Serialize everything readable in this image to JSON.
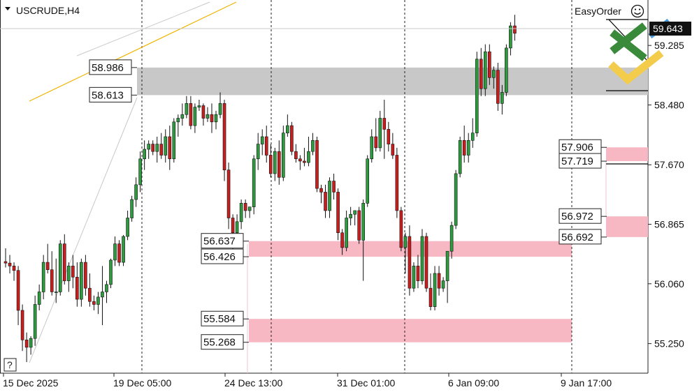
{
  "chart_header": {
    "symbol": "USCRUDE,H4",
    "panel_name": "EasyOrder",
    "help_label": "?"
  },
  "chart_data": {
    "type": "candlestick",
    "symbol": "USCRUDE",
    "timeframe": "H4",
    "current_price": "59.643",
    "y_range": [
      54.85,
      59.9
    ],
    "y_ticks": [
      "59.285",
      "58.480",
      "57.670",
      "56.865",
      "56.060",
      "55.250"
    ],
    "x_ticks": [
      "15 Dec 2025",
      "19 Dec 05:00",
      "24 Dec 13:00",
      "31 Dec 01:00",
      "6 Jan 09:00",
      "9 Jan 17:00"
    ],
    "grid": "vertical dashed separators",
    "zones": [
      {
        "color": "#c8c8c8",
        "high": "58.986",
        "low": "58.613"
      },
      {
        "color": "#f7b8c4",
        "high": "56.637",
        "low": "56.426"
      },
      {
        "color": "#f7b8c4",
        "high": "55.584",
        "low": "55.268"
      },
      {
        "color": "#f7b8c4",
        "high": "57.906",
        "low": "57.719"
      },
      {
        "color": "#f7b8c4",
        "high": "56.972",
        "low": "56.692"
      }
    ],
    "candles": [
      [
        56.36,
        56.54,
        56.28,
        56.34
      ],
      [
        56.34,
        56.45,
        56.2,
        56.3
      ],
      [
        56.3,
        56.35,
        56.1,
        56.24
      ],
      [
        56.24,
        56.3,
        55.5,
        55.7
      ],
      [
        55.7,
        55.78,
        55.15,
        55.3
      ],
      [
        55.3,
        55.4,
        55.0,
        55.2
      ],
      [
        55.2,
        55.35,
        55.1,
        55.32
      ],
      [
        55.32,
        55.9,
        55.22,
        55.78
      ],
      [
        55.78,
        56.05,
        55.7,
        55.95
      ],
      [
        55.95,
        56.45,
        55.85,
        56.35
      ],
      [
        56.35,
        56.6,
        56.2,
        56.25
      ],
      [
        56.25,
        56.5,
        55.9,
        55.95
      ],
      [
        55.95,
        56.4,
        55.8,
        55.95
      ],
      [
        55.95,
        56.65,
        55.9,
        56.6
      ],
      [
        56.6,
        56.73,
        56.05,
        56.1
      ],
      [
        56.1,
        56.35,
        55.95,
        56.3
      ],
      [
        56.3,
        56.45,
        56.0,
        56.15
      ],
      [
        56.15,
        56.35,
        55.75,
        55.85
      ],
      [
        55.85,
        56.4,
        55.75,
        56.35
      ],
      [
        56.35,
        56.45,
        55.9,
        56.0
      ],
      [
        56.0,
        56.2,
        55.75,
        55.82
      ],
      [
        55.82,
        55.9,
        55.7,
        55.78
      ],
      [
        55.78,
        55.95,
        55.65,
        55.88
      ],
      [
        55.88,
        56.3,
        55.5,
        55.95
      ],
      [
        55.95,
        56.1,
        55.8,
        56.05
      ],
      [
        56.05,
        56.4,
        56.0,
        56.38
      ],
      [
        56.38,
        56.7,
        56.3,
        56.6
      ],
      [
        56.6,
        56.65,
        56.3,
        56.35
      ],
      [
        56.35,
        56.72,
        56.3,
        56.7
      ],
      [
        56.7,
        57.05,
        56.65,
        56.95
      ],
      [
        56.95,
        57.25,
        56.9,
        57.2
      ],
      [
        57.2,
        57.5,
        57.1,
        57.4
      ],
      [
        57.4,
        57.85,
        57.3,
        57.75
      ],
      [
        57.75,
        58.0,
        57.6,
        57.88
      ],
      [
        57.88,
        58.0,
        57.75,
        57.95
      ],
      [
        57.95,
        58.0,
        57.8,
        57.85
      ],
      [
        57.85,
        58.05,
        57.7,
        57.95
      ],
      [
        57.95,
        58.1,
        57.75,
        57.8
      ],
      [
        57.8,
        58.15,
        57.7,
        58.05
      ],
      [
        58.05,
        58.2,
        57.6,
        57.75
      ],
      [
        57.75,
        58.3,
        57.7,
        58.25
      ],
      [
        58.25,
        58.35,
        58.05,
        58.3
      ],
      [
        58.3,
        58.5,
        58.2,
        58.35
      ],
      [
        58.35,
        58.6,
        58.3,
        58.5
      ],
      [
        58.5,
        58.6,
        58.15,
        58.2
      ],
      [
        58.2,
        58.5,
        58.1,
        58.45
      ],
      [
        58.45,
        58.55,
        58.4,
        58.47
      ],
      [
        58.47,
        58.5,
        58.2,
        58.3
      ],
      [
        58.3,
        58.45,
        58.25,
        58.35
      ],
      [
        58.35,
        58.5,
        58.1,
        58.25
      ],
      [
        58.25,
        58.4,
        58.15,
        58.35
      ],
      [
        58.35,
        58.65,
        58.3,
        58.5
      ],
      [
        58.5,
        58.55,
        57.45,
        57.6
      ],
      [
        57.6,
        57.7,
        56.8,
        56.95
      ],
      [
        56.95,
        57.0,
        56.5,
        56.75
      ],
      [
        56.75,
        57.0,
        56.55,
        56.9
      ],
      [
        56.9,
        57.2,
        56.8,
        57.15
      ],
      [
        57.15,
        57.2,
        56.95,
        57.05
      ],
      [
        57.05,
        57.1,
        56.95,
        57.1
      ],
      [
        57.1,
        57.8,
        57.0,
        57.75
      ],
      [
        57.75,
        58.1,
        57.6,
        57.95
      ],
      [
        57.95,
        58.15,
        57.8,
        58.05
      ],
      [
        58.05,
        58.2,
        57.7,
        57.8
      ],
      [
        57.8,
        57.95,
        57.5,
        57.55
      ],
      [
        57.55,
        57.9,
        57.45,
        57.85
      ],
      [
        57.85,
        58.0,
        57.4,
        57.5
      ],
      [
        57.5,
        58.2,
        57.45,
        58.1
      ],
      [
        58.1,
        58.35,
        58.05,
        58.2
      ],
      [
        58.2,
        58.25,
        57.8,
        57.85
      ],
      [
        57.85,
        57.95,
        57.7,
        57.75
      ],
      [
        57.75,
        57.8,
        57.6,
        57.72
      ],
      [
        57.72,
        57.9,
        57.65,
        57.7
      ],
      [
        57.7,
        58.05,
        57.65,
        57.85
      ],
      [
        57.85,
        58.1,
        57.8,
        58.0
      ],
      [
        58.0,
        58.05,
        57.3,
        57.35
      ],
      [
        57.35,
        57.4,
        57.15,
        57.3
      ],
      [
        57.3,
        57.4,
        56.95,
        57.05
      ],
      [
        57.05,
        57.5,
        56.95,
        57.45
      ],
      [
        57.45,
        57.55,
        57.2,
        57.3
      ],
      [
        57.3,
        57.35,
        56.65,
        56.75
      ],
      [
        56.75,
        56.8,
        56.45,
        56.55
      ],
      [
        56.55,
        57.05,
        56.5,
        56.95
      ],
      [
        56.95,
        57.1,
        56.85,
        57.0
      ],
      [
        57.0,
        57.05,
        56.85,
        57.05
      ],
      [
        57.05,
        57.1,
        56.6,
        56.65
      ],
      [
        56.65,
        57.2,
        56.1,
        57.15
      ],
      [
        57.15,
        57.8,
        57.1,
        57.75
      ],
      [
        57.75,
        58.15,
        57.7,
        58.05
      ],
      [
        58.05,
        58.3,
        57.85,
        57.9
      ],
      [
        57.9,
        58.4,
        57.85,
        58.3
      ],
      [
        58.3,
        58.55,
        57.75,
        58.15
      ],
      [
        58.15,
        58.25,
        57.85,
        57.95
      ],
      [
        57.95,
        58.1,
        57.75,
        57.8
      ],
      [
        57.8,
        57.9,
        56.95,
        57.05
      ],
      [
        57.05,
        57.1,
        56.5,
        56.55
      ],
      [
        56.55,
        56.75,
        56.2,
        56.7
      ],
      [
        56.7,
        56.85,
        55.9,
        56.0
      ],
      [
        56.0,
        56.35,
        55.95,
        56.3
      ],
      [
        56.3,
        56.45,
        56.0,
        56.1
      ],
      [
        56.1,
        56.8,
        56.05,
        56.7
      ],
      [
        56.7,
        56.75,
        55.95,
        56.0
      ],
      [
        56.0,
        56.2,
        55.7,
        55.75
      ],
      [
        55.75,
        56.3,
        55.7,
        56.2
      ],
      [
        56.2,
        56.3,
        55.9,
        56.0
      ],
      [
        56.0,
        56.15,
        55.95,
        56.1
      ],
      [
        56.1,
        56.5,
        55.8,
        56.5
      ],
      [
        56.5,
        56.9,
        56.4,
        56.85
      ],
      [
        56.85,
        57.6,
        56.8,
        57.55
      ],
      [
        57.55,
        58.05,
        57.5,
        58.0
      ],
      [
        58.0,
        58.2,
        57.7,
        57.8
      ],
      [
        57.8,
        58.1,
        57.7,
        58.0
      ],
      [
        58.0,
        58.3,
        57.9,
        58.1
      ],
      [
        58.1,
        59.2,
        58.05,
        59.1
      ],
      [
        59.1,
        59.25,
        58.6,
        58.7
      ],
      [
        58.7,
        59.3,
        58.6,
        59.2
      ],
      [
        59.2,
        59.3,
        58.75,
        58.85
      ],
      [
        58.85,
        59.0,
        58.7,
        58.95
      ],
      [
        58.95,
        59.05,
        58.4,
        58.5
      ],
      [
        58.5,
        58.75,
        58.35,
        58.65
      ],
      [
        58.65,
        59.3,
        58.6,
        59.25
      ],
      [
        59.25,
        59.6,
        59.15,
        59.55
      ],
      [
        59.55,
        59.7,
        59.35,
        59.45
      ]
    ]
  }
}
